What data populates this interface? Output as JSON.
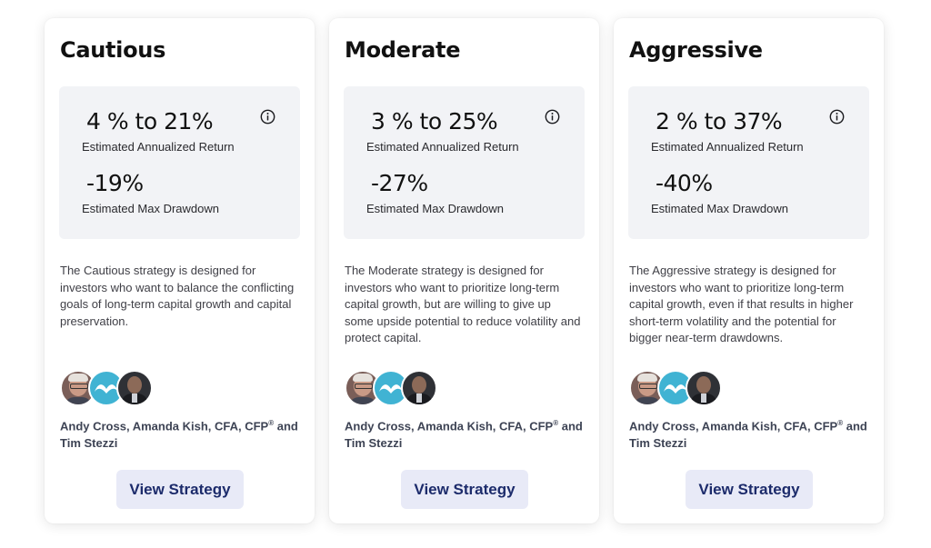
{
  "strategies": [
    {
      "title": "Cautious",
      "return_value": "4 % to 21%",
      "return_label": "Estimated Annualized Return",
      "drawdown_value": "-19%",
      "drawdown_label": "Estimated Max Drawdown",
      "description": "The Cautious strategy is designed for investors who want to balance the conflicting goals of long-term capital growth and capital preservation.",
      "authors_main": "Andy Cross, Amanda Kish, CFA, CFP",
      "authors_reg": "®",
      "authors_tail": " and Tim Stezzi",
      "button_label": "View Strategy"
    },
    {
      "title": "Moderate",
      "return_value": "3 % to 25%",
      "return_label": "Estimated Annualized Return",
      "drawdown_value": "-27%",
      "drawdown_label": "Estimated Max Drawdown",
      "description": "The Moderate strategy is designed for investors who want to prioritize long-term capital growth, but are willing to give up some upside potential to reduce volatility and protect capital.",
      "authors_main": "Andy Cross, Amanda Kish, CFA, CFP",
      "authors_reg": "®",
      "authors_tail": " and Tim Stezzi",
      "button_label": "View Strategy"
    },
    {
      "title": "Aggressive",
      "return_value": "2 % to 37%",
      "return_label": "Estimated Annualized Return",
      "drawdown_value": "-40%",
      "drawdown_label": "Estimated Max Drawdown",
      "description": "The Aggressive strategy is designed for investors who want to prioritize long-term capital growth, even if that results in higher short-term volatility and the potential for bigger near-term drawdowns.",
      "authors_main": "Andy Cross, Amanda Kish, CFA, CFP",
      "authors_reg": "®",
      "authors_tail": " and Tim Stezzi",
      "button_label": "View Strategy"
    }
  ],
  "icons": {
    "info": "info-circle-icon",
    "team_logo": "fool-cap-logo"
  },
  "colors": {
    "stats_bg": "#f2f3f6",
    "button_bg": "#e8eaf7",
    "button_text": "#1c2b6b",
    "logo_bg": "#40b3d3"
  }
}
